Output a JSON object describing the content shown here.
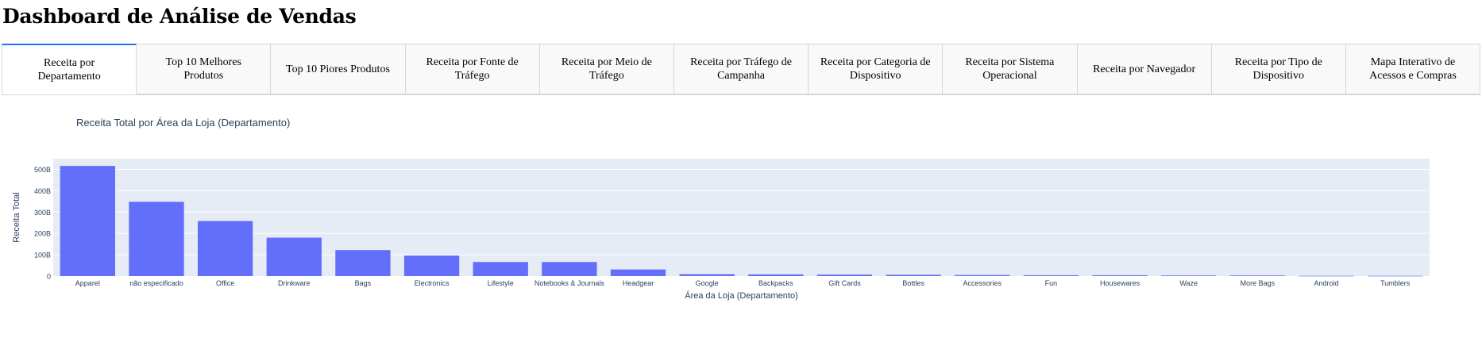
{
  "page": {
    "title": "Dashboard de Análise de Vendas"
  },
  "tabs": [
    {
      "label": "Receita por Departamento",
      "active": true
    },
    {
      "label": "Top 10 Melhores Produtos",
      "active": false
    },
    {
      "label": "Top 10 Piores Produtos",
      "active": false
    },
    {
      "label": "Receita por Fonte de Tráfego",
      "active": false
    },
    {
      "label": "Receita por Meio de Tráfego",
      "active": false
    },
    {
      "label": "Receita por Tráfego de Campanha",
      "active": false
    },
    {
      "label": "Receita por Categoria de Dispositivo",
      "active": false
    },
    {
      "label": "Receita por Sistema Operacional",
      "active": false
    },
    {
      "label": "Receita por Navegador",
      "active": false
    },
    {
      "label": "Receita por Tipo de Dispositivo",
      "active": false
    },
    {
      "label": "Mapa Interativo de Acessos e Compras",
      "active": false
    }
  ],
  "colors": {
    "bar": "#636efa",
    "plot_bg": "#e5ecf6",
    "grid": "#ffffff",
    "text": "#2a3f5f",
    "tab_accent": "#1975fa"
  },
  "chart_data": {
    "type": "bar",
    "title": "Receita Total por Área da Loja (Departamento)",
    "xlabel": "Área da Loja (Departamento)",
    "ylabel": "Receita Total",
    "categories": [
      "Apparel",
      "não especificado",
      "Office",
      "Drinkware",
      "Bags",
      "Electronics",
      "Lifestyle",
      "Notebooks & Journals",
      "Headgear",
      "Google",
      "Backpacks",
      "Gift Cards",
      "Bottles",
      "Accessories",
      "Fun",
      "Housewares",
      "Waze",
      "More Bags",
      "Android",
      "Tumblers"
    ],
    "values": [
      516,
      348,
      258,
      180,
      122,
      96,
      66,
      66,
      31,
      9,
      8,
      7,
      6,
      5,
      4,
      4,
      3,
      3,
      1,
      1
    ],
    "value_unit": "B",
    "ylim": [
      0,
      550
    ],
    "yticks": [
      0,
      100,
      200,
      300,
      400,
      500
    ],
    "ytick_labels": [
      "0",
      "100B",
      "200B",
      "300B",
      "400B",
      "500B"
    ],
    "grid": true
  }
}
